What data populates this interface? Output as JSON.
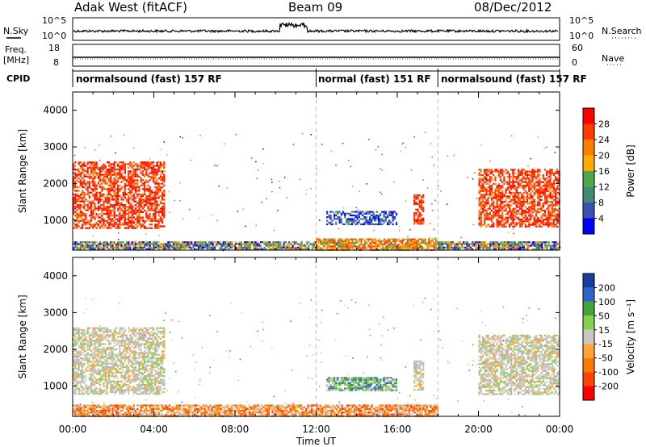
{
  "header": {
    "title": "Adak West (fitACF)",
    "beam": "Beam 09",
    "date": "08/Dec/2012"
  },
  "panels": {
    "nsky_label": "N.Sky",
    "nsky_ticks": [
      "10^5",
      "10^0"
    ],
    "nsearch_label": "N.Search",
    "nsearch_ticks": [
      "10^5",
      "10^0"
    ],
    "freq_label": "Freq.",
    "freq_unit": "[MHz]",
    "freq_ticks": [
      "18",
      "8"
    ],
    "nave_label": "Nave",
    "nave_ticks": [
      "60",
      "0"
    ],
    "cpid_label": "CPID"
  },
  "cpid_segments": [
    {
      "label": "normalsound (fast) 157 RF",
      "start_hour": 0,
      "end_hour": 12
    },
    {
      "label": "normal (fast) 151 RF",
      "start_hour": 12,
      "end_hour": 18
    },
    {
      "label": "normalsound (fast) 157 RF",
      "start_hour": 18,
      "end_hour": 24
    }
  ],
  "chart_data": [
    {
      "type": "heatmap",
      "title": "",
      "xlabel": "",
      "ylabel": "Slant Range [km]",
      "xlim": [
        0,
        24
      ],
      "ylim": [
        180,
        4500
      ],
      "yticks": [
        1000,
        2000,
        3000,
        4000
      ],
      "colorbar": {
        "label": "Power [dB]",
        "ticks": [
          4,
          8,
          12,
          16,
          20,
          24,
          28
        ],
        "range": [
          0,
          32
        ],
        "colors": [
          "#0000ff",
          "#3b50b4",
          "#3f8d6e",
          "#51a84a",
          "#ffaa00",
          "#ff7d00",
          "#ff3c00",
          "#ff0000"
        ]
      },
      "echo_regions": [
        {
          "x": [
            0.0,
            4.5
          ],
          "y": [
            800,
            2600
          ],
          "level": 28
        },
        {
          "x": [
            0.0,
            4.8
          ],
          "y": [
            180,
            420
          ],
          "level": 12
        },
        {
          "x": [
            4.5,
            12.0
          ],
          "y": [
            180,
            420
          ],
          "level": 12
        },
        {
          "x": [
            12.0,
            18.0
          ],
          "y": [
            180,
            500
          ],
          "level": 20
        },
        {
          "x": [
            12.5,
            16.0
          ],
          "y": [
            900,
            1250
          ],
          "level": 8
        },
        {
          "x": [
            16.8,
            17.3
          ],
          "y": [
            900,
            1700
          ],
          "level": 24
        },
        {
          "x": [
            20.0,
            24.0
          ],
          "y": [
            800,
            2400
          ],
          "level": 28
        },
        {
          "x": [
            18.0,
            24.0
          ],
          "y": [
            180,
            420
          ],
          "level": 12
        }
      ]
    },
    {
      "type": "heatmap",
      "title": "",
      "xlabel": "Time UT",
      "ylabel": "Slant Range [km]",
      "xlim": [
        0,
        24
      ],
      "ylim": [
        180,
        4500
      ],
      "yticks": [
        1000,
        2000,
        3000,
        4000
      ],
      "xticks": [
        "00:00",
        "04:00",
        "08:00",
        "12:00",
        "16:00",
        "20:00",
        "00:00"
      ],
      "colorbar": {
        "label": "Velocity [m s⁻¹]",
        "ticks": [
          200,
          100,
          50,
          15,
          -15,
          -50,
          -100,
          -200
        ],
        "colors": [
          "#1a3da0",
          "#2e63c8",
          "#46a23a",
          "#86d24a",
          "#c8c8c8",
          "#ffa33a",
          "#ff7a00",
          "#ff4400",
          "#ff0000"
        ]
      },
      "echo_regions": [
        {
          "x": [
            0.0,
            4.5
          ],
          "y": [
            800,
            2600
          ],
          "velocity": 0
        },
        {
          "x": [
            0.0,
            12.0
          ],
          "y": [
            180,
            500
          ],
          "velocity": -60
        },
        {
          "x": [
            12.0,
            18.0
          ],
          "y": [
            180,
            500
          ],
          "velocity": -60
        },
        {
          "x": [
            12.5,
            16.0
          ],
          "y": [
            900,
            1250
          ],
          "velocity": 60
        },
        {
          "x": [
            16.8,
            17.3
          ],
          "y": [
            900,
            1700
          ],
          "velocity": 0
        },
        {
          "x": [
            20.0,
            24.0
          ],
          "y": [
            800,
            2400
          ],
          "velocity": 0
        }
      ]
    }
  ],
  "colors": {
    "axis": "#000000",
    "divider": "#bbbbbb"
  }
}
